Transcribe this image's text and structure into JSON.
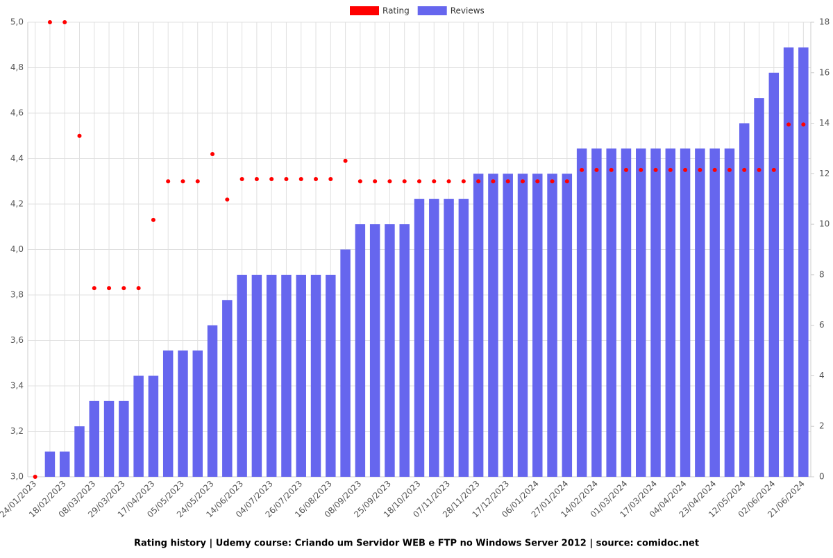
{
  "chart_data": {
    "type": "bar-line",
    "title": "Rating history | Udemy course: Criando um Servidor WEB e FTP no Windows Server 2012 | source: comidoc.net",
    "categories": [
      "24/01/2023",
      null,
      "18/02/2023",
      null,
      "08/03/2023",
      null,
      "29/03/2023",
      null,
      "17/04/2023",
      null,
      "05/05/2023",
      null,
      "24/05/2023",
      null,
      "14/06/2023",
      null,
      "04/07/2023",
      null,
      "26/07/2023",
      null,
      "16/08/2023",
      null,
      "08/09/2023",
      null,
      "25/09/2023",
      null,
      "18/10/2023",
      null,
      "07/11/2023",
      null,
      "28/11/2023",
      null,
      "17/12/2023",
      null,
      "06/01/2024",
      null,
      "27/01/2024",
      null,
      "14/02/2024",
      null,
      "01/03/2024",
      null,
      "17/03/2024",
      null,
      "04/04/2024",
      null,
      "23/04/2024",
      null,
      "12/05/2024",
      null,
      "02/06/2024",
      null,
      "21/06/2024"
    ],
    "series": [
      {
        "name": "Rating",
        "type": "line",
        "color": "#ff0000",
        "axis": "y",
        "values": [
          3.0,
          5.0,
          5.0,
          4.5,
          3.83,
          3.83,
          3.83,
          3.83,
          4.13,
          4.3,
          4.3,
          4.3,
          4.42,
          4.22,
          4.31,
          4.31,
          4.31,
          4.31,
          4.31,
          4.31,
          4.31,
          4.39,
          4.3,
          4.3,
          4.3,
          4.3,
          4.3,
          4.3,
          4.3,
          4.3,
          4.3,
          4.3,
          4.3,
          4.3,
          4.3,
          4.3,
          4.3,
          4.35,
          4.35,
          4.35,
          4.35,
          4.35,
          4.35,
          4.35,
          4.35,
          4.35,
          4.35,
          4.35,
          4.35,
          4.35,
          4.35,
          4.55,
          4.55
        ]
      },
      {
        "name": "Reviews",
        "type": "bar",
        "color": "#6666ee",
        "axis": "y2",
        "values": [
          0,
          1,
          1,
          2,
          3,
          3,
          3,
          4,
          4,
          5,
          5,
          5,
          6,
          7,
          8,
          8,
          8,
          8,
          8,
          8,
          8,
          9,
          10,
          10,
          10,
          10,
          11,
          11,
          11,
          11,
          12,
          12,
          12,
          12,
          12,
          12,
          12,
          13,
          13,
          13,
          13,
          13,
          13,
          13,
          13,
          13,
          13,
          13,
          14,
          15,
          16,
          17,
          17
        ]
      }
    ],
    "ylim": [
      3.0,
      5.0
    ],
    "yticks": [
      {
        "value": 3.0,
        "label": "3,0"
      },
      {
        "value": 3.2,
        "label": "3,2"
      },
      {
        "value": 3.4,
        "label": "3,4"
      },
      {
        "value": 3.6,
        "label": "3,6"
      },
      {
        "value": 3.8,
        "label": "3,8"
      },
      {
        "value": 4.0,
        "label": "4,0"
      },
      {
        "value": 4.2,
        "label": "4,2"
      },
      {
        "value": 4.4,
        "label": "4,4"
      },
      {
        "value": 4.6,
        "label": "4,6"
      },
      {
        "value": 4.8,
        "label": "4,8"
      },
      {
        "value": 5.0,
        "label": "5,0"
      }
    ],
    "y2lim": [
      0,
      18
    ],
    "y2ticks": [
      0,
      2,
      4,
      6,
      8,
      10,
      12,
      14,
      16,
      18
    ],
    "grid": true,
    "legend": "top"
  }
}
